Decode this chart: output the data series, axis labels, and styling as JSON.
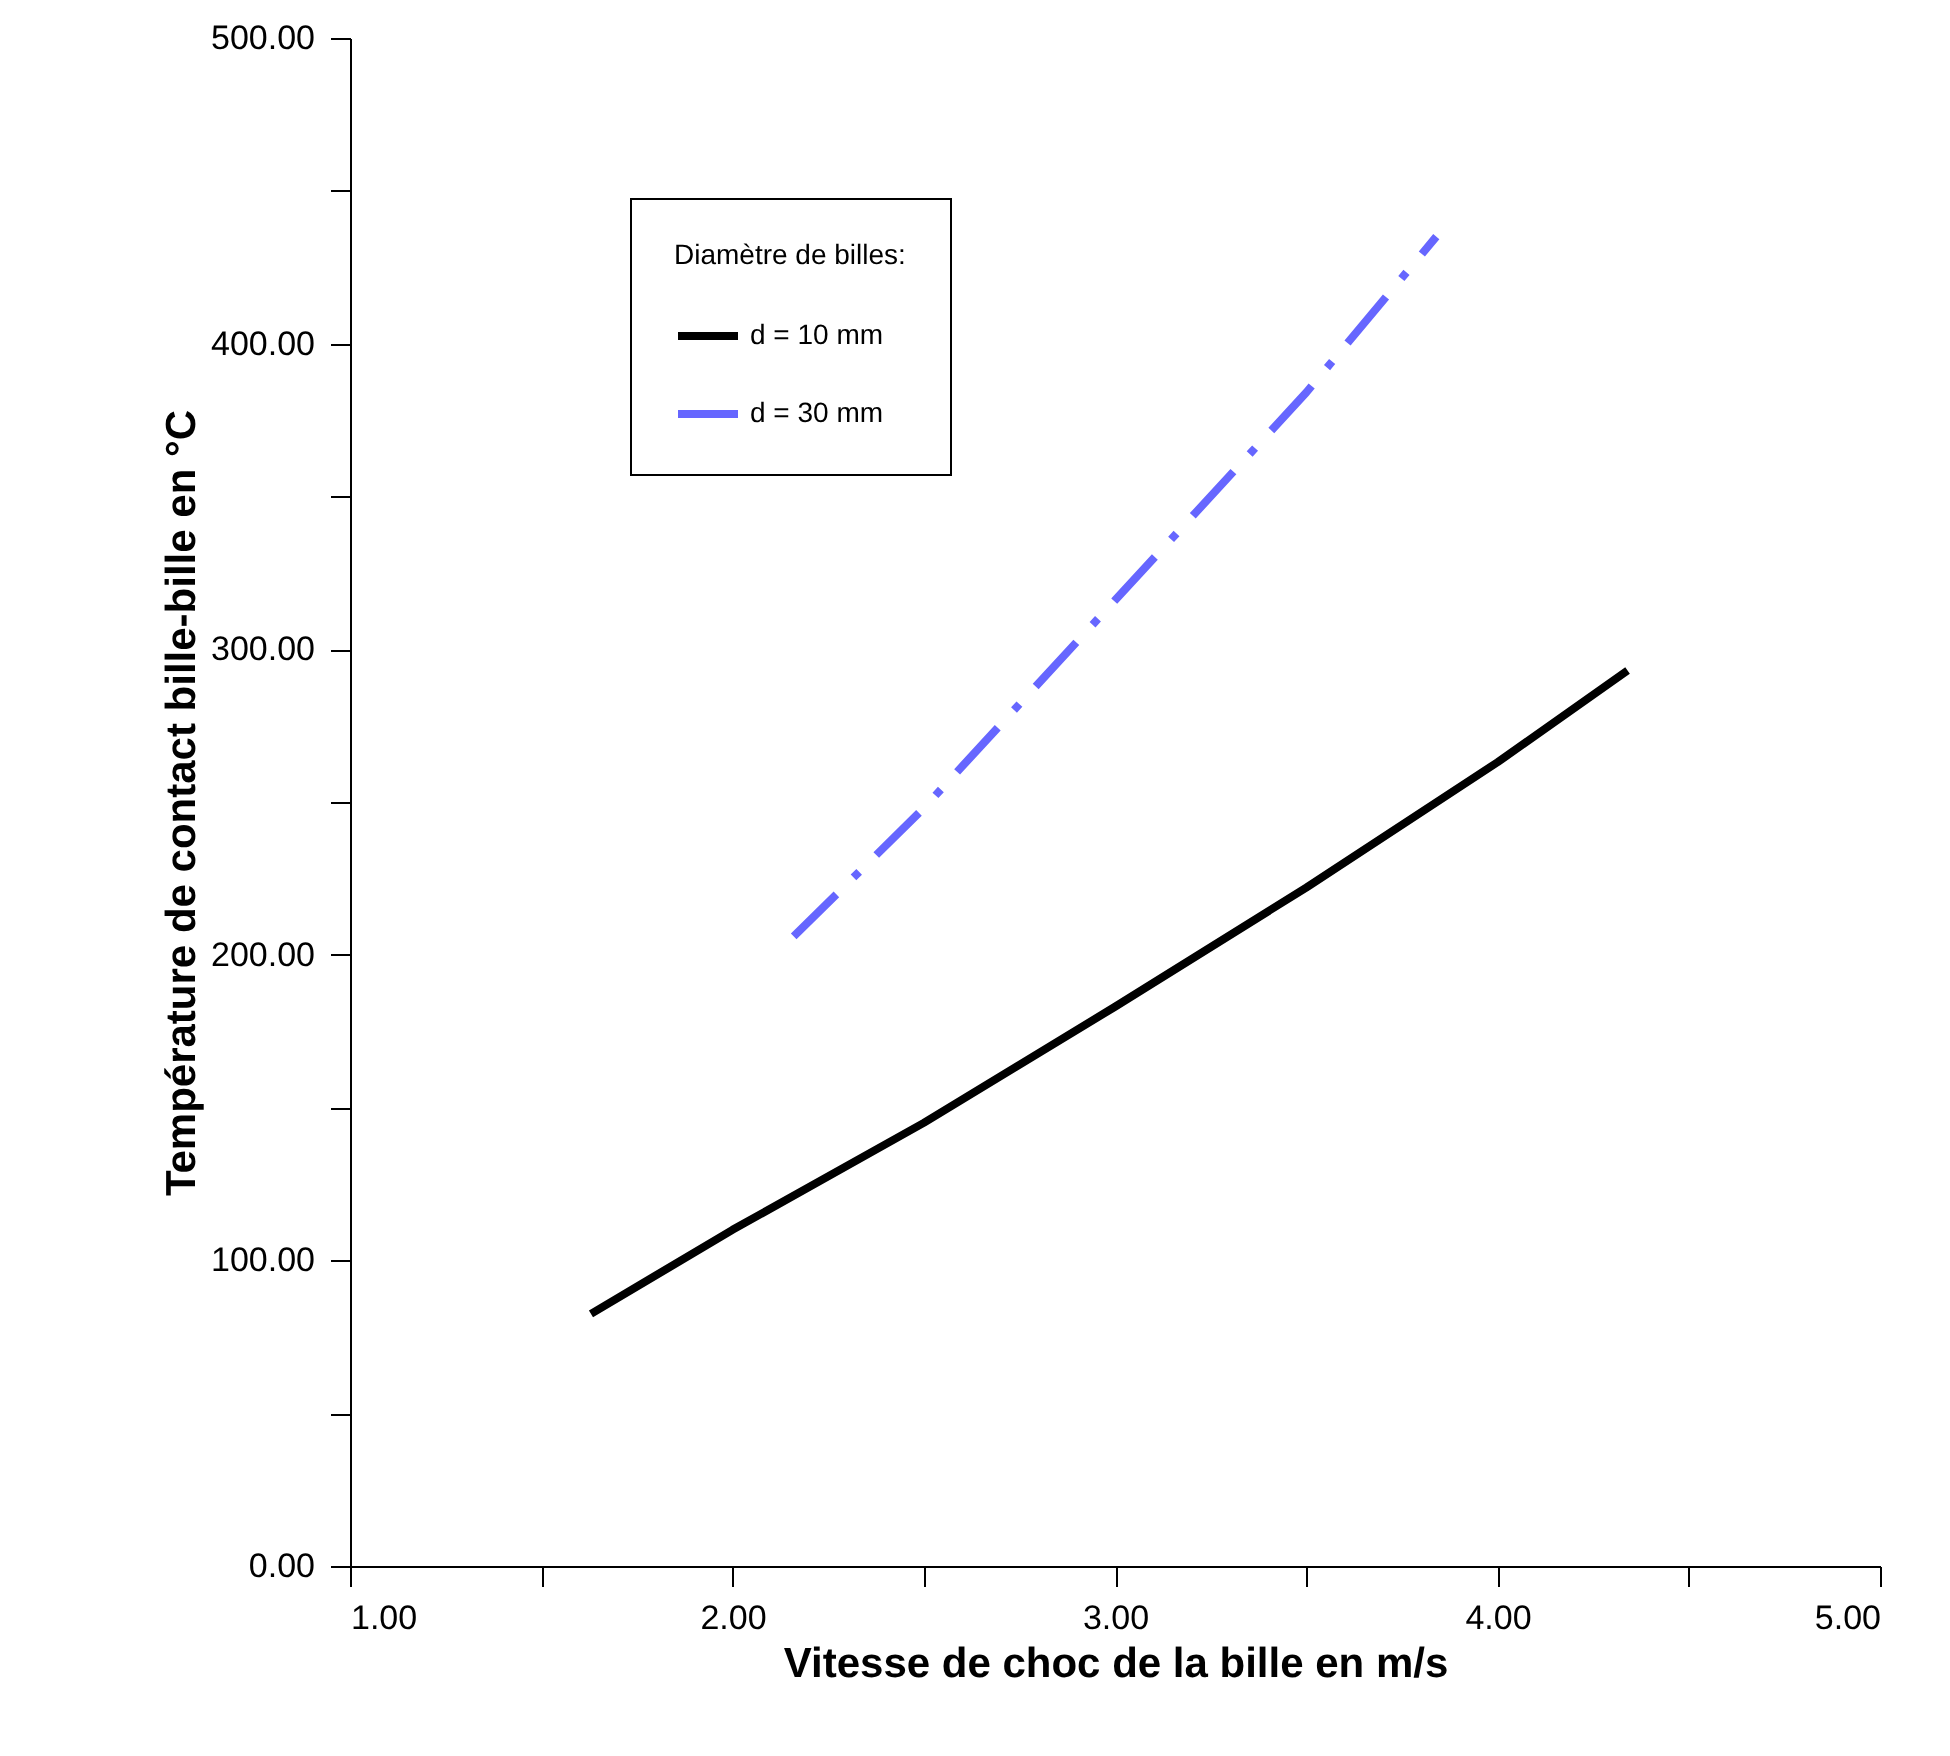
{
  "chart_data": {
    "type": "line",
    "xlabel": "Vitesse de choc de la bille en m/s",
    "ylabel": "Température de contact bille-bille en °C",
    "legend_title": "Diamètre de billes:",
    "legend": "top left",
    "grid": false,
    "xlim": [
      1,
      5
    ],
    "ylim": [
      0,
      500
    ],
    "xticks": [
      {
        "value": 1,
        "label": "1.00"
      },
      {
        "value": 1.5,
        "label": null
      },
      {
        "value": 2,
        "label": "2.00"
      },
      {
        "value": 2.5,
        "label": null
      },
      {
        "value": 3,
        "label": "3.00"
      },
      {
        "value": 3.5,
        "label": null
      },
      {
        "value": 4,
        "label": "4.00"
      },
      {
        "value": 4.5,
        "label": null
      },
      {
        "value": 5,
        "label": "5.00"
      }
    ],
    "yticks": [
      {
        "value": 0,
        "label": "0.00"
      },
      {
        "value": 50,
        "label": null
      },
      {
        "value": 100,
        "label": "100.00"
      },
      {
        "value": 150,
        "label": null
      },
      {
        "value": 200,
        "label": "200.00"
      },
      {
        "value": 250,
        "label": null
      },
      {
        "value": 300,
        "label": "300.00"
      },
      {
        "value": 350,
        "label": null
      },
      {
        "value": 400,
        "label": "400.00"
      },
      {
        "value": 450,
        "label": null
      },
      {
        "value": 500,
        "label": "500.00"
      }
    ],
    "series": [
      {
        "name": "d = 10 mm",
        "color": "#000000",
        "line_style": "solid",
        "x": [
          1.63,
          2.0,
          2.5,
          3.0,
          3.5,
          4.0,
          4.34
        ],
        "values": [
          82.5,
          110,
          145,
          183,
          222,
          263,
          293
        ]
      },
      {
        "name": "d = 30 mm",
        "color": "#6666ff",
        "line_style": "dashed",
        "x": [
          2.16,
          2.5,
          3.0,
          3.5,
          3.84
        ],
        "values": [
          206,
          248,
          316,
          384,
          435
        ]
      }
    ]
  }
}
